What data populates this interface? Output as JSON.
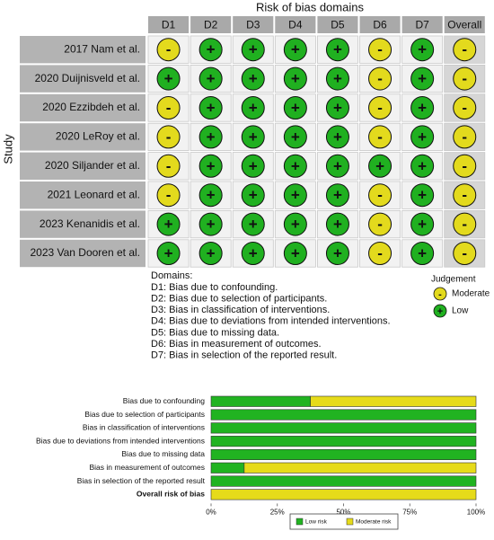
{
  "traffic_light": {
    "title": "Risk of bias domains",
    "y_label": "Study",
    "domains": [
      "D1",
      "D2",
      "D3",
      "D4",
      "D5",
      "D6",
      "D7",
      "Overall"
    ],
    "studies": [
      {
        "name": "2017 Nam et al.",
        "judgements": [
          "-",
          "+",
          "+",
          "+",
          "+",
          "-",
          "+",
          "-"
        ]
      },
      {
        "name": "2020 Duijnisveld et al.",
        "judgements": [
          "+",
          "+",
          "+",
          "+",
          "+",
          "-",
          "+",
          "-"
        ]
      },
      {
        "name": "2020 Ezzibdeh et al.",
        "judgements": [
          "-",
          "+",
          "+",
          "+",
          "+",
          "-",
          "+",
          "-"
        ]
      },
      {
        "name": "2020 LeRoy et al.",
        "judgements": [
          "-",
          "+",
          "+",
          "+",
          "+",
          "-",
          "+",
          "-"
        ]
      },
      {
        "name": "2020 Siljander et al.",
        "judgements": [
          "-",
          "+",
          "+",
          "+",
          "+",
          "+",
          "+",
          "-"
        ]
      },
      {
        "name": "2021 Leonard et al.",
        "judgements": [
          "-",
          "+",
          "+",
          "+",
          "+",
          "-",
          "+",
          "-"
        ]
      },
      {
        "name": "2023 Kenanidis et al.",
        "judgements": [
          "+",
          "+",
          "+",
          "+",
          "+",
          "-",
          "+",
          "-"
        ]
      },
      {
        "name": "2023 Van Dooren et al.",
        "judgements": [
          "+",
          "+",
          "+",
          "+",
          "+",
          "-",
          "+",
          "-"
        ]
      }
    ],
    "domain_notes_title": "Domains:",
    "domain_notes": [
      "D1: Bias due to confounding.",
      "D2: Bias due to selection of participants.",
      "D3: Bias in classification of interventions.",
      "D4: Bias due to deviations from intended interventions.",
      "D5: Bias due to missing data.",
      "D6: Bias in measurement of outcomes.",
      "D7: Bias in selection of the reported result."
    ],
    "legend_title": "Judgement",
    "judgement_levels": [
      {
        "symbol": "-",
        "label": "Moderate",
        "color": "#e3da1d"
      },
      {
        "symbol": "+",
        "label": "Low",
        "color": "#20b020"
      }
    ]
  },
  "chart_data": {
    "type": "bar",
    "orientation": "horizontal",
    "stacked": true,
    "categories": [
      "Bias due to confounding",
      "Bias due to selection of participants",
      "Bias in classification of interventions",
      "Bias due to deviations from intended interventions",
      "Bias due to missing data",
      "Bias in measurement of outcomes",
      "Bias in selection of the reported result",
      "Overall risk of bias"
    ],
    "series": [
      {
        "name": "Low risk",
        "color": "#21b321",
        "values": [
          37.5,
          100,
          100,
          100,
          100,
          12.5,
          100,
          0
        ]
      },
      {
        "name": "Moderate risk",
        "color": "#e6db1a",
        "values": [
          62.5,
          0,
          0,
          0,
          0,
          87.5,
          0,
          100
        ]
      }
    ],
    "xlim": [
      0,
      100
    ],
    "xticks": [
      {
        "value": 0,
        "label": "0%"
      },
      {
        "value": 25,
        "label": "25%"
      },
      {
        "value": 50,
        "label": "50%"
      },
      {
        "value": 75,
        "label": "75%"
      },
      {
        "value": 100,
        "label": "100%"
      }
    ]
  }
}
